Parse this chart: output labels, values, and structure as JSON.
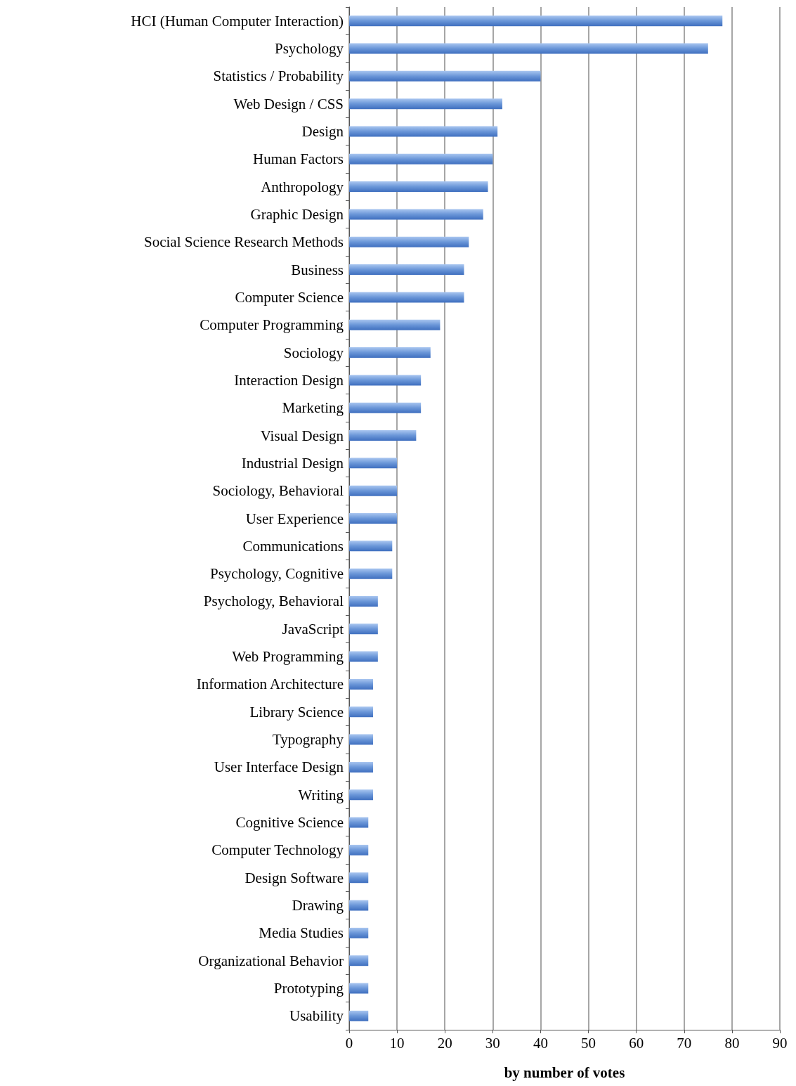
{
  "chart_data": {
    "type": "bar",
    "orientation": "horizontal",
    "xlabel": "by number of votes",
    "categories": [
      "HCI (Human Computer Interaction)",
      "Psychology",
      "Statistics / Probability",
      "Web Design / CSS",
      "Design",
      "Human Factors",
      "Anthropology",
      "Graphic Design",
      "Social Science Research Methods",
      "Business",
      "Computer Science",
      "Computer Programming",
      "Sociology",
      "Interaction Design",
      "Marketing",
      "Visual Design",
      "Industrial Design",
      "Sociology, Behavioral",
      "User Experience",
      "Communications",
      "Psychology, Cognitive",
      "Psychology, Behavioral",
      "JavaScript",
      "Web Programming",
      "Information Architecture",
      "Library Science",
      "Typography",
      "User Interface Design",
      "Writing",
      "Cognitive Science",
      "Computer Technology",
      "Design Software",
      "Drawing",
      "Media Studies",
      "Organizational Behavior",
      "Prototyping",
      "Usability"
    ],
    "values": [
      78,
      75,
      40,
      32,
      31,
      30,
      29,
      28,
      25,
      24,
      24,
      19,
      17,
      15,
      15,
      14,
      10,
      10,
      10,
      9,
      9,
      6,
      6,
      6,
      5,
      5,
      5,
      5,
      5,
      4,
      4,
      4,
      4,
      4,
      4,
      4,
      4
    ],
    "color": "#6a96d8",
    "xlim": [
      0,
      90
    ],
    "xticks": [
      0,
      10,
      20,
      30,
      40,
      50,
      60,
      70,
      80,
      90
    ],
    "grid": "x"
  }
}
